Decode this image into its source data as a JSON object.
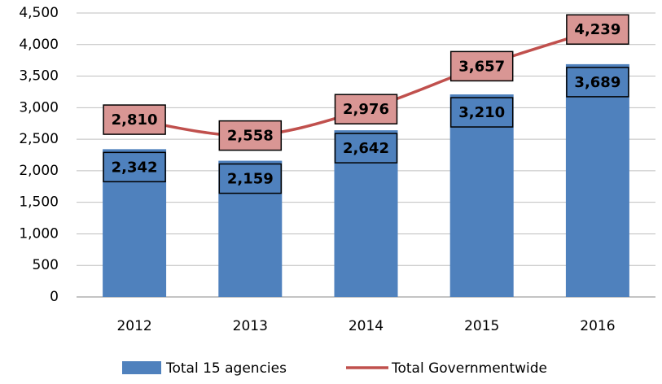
{
  "chart_data": {
    "type": "combo",
    "categories": [
      "2012",
      "2013",
      "2014",
      "2015",
      "2016"
    ],
    "series": [
      {
        "name": "Total 15 agencies",
        "type": "bar",
        "color": "#4f81bd",
        "label_color": "#4f81bd",
        "values": [
          2342,
          2159,
          2642,
          3210,
          3689
        ],
        "value_labels": [
          "2,342",
          "2,159",
          "2,642",
          "3,210",
          "3,689"
        ]
      },
      {
        "name": "Total Governmentwide",
        "type": "line",
        "color": "#c0504d",
        "label_color": "#d99694",
        "values": [
          2810,
          2558,
          2976,
          3657,
          4239
        ],
        "value_labels": [
          "2,810",
          "2,558",
          "2,976",
          "3,657",
          "4,239"
        ]
      }
    ],
    "ylim": [
      0,
      4500
    ],
    "yticks": [
      0,
      500,
      {
        "value": 1000,
        "label": "1,000"
      },
      {
        "value": 1500,
        "label": "1,500"
      },
      {
        "value": 2000,
        "label": "2,000"
      },
      {
        "value": 2500,
        "label": "2,500"
      },
      {
        "value": 3000,
        "label": "3,000"
      },
      {
        "value": 3500,
        "label": "3,500"
      },
      {
        "value": 4000,
        "label": "4,000"
      },
      {
        "value": 4500,
        "label": "4,500"
      }
    ],
    "grid": true,
    "legend": "bottom"
  }
}
